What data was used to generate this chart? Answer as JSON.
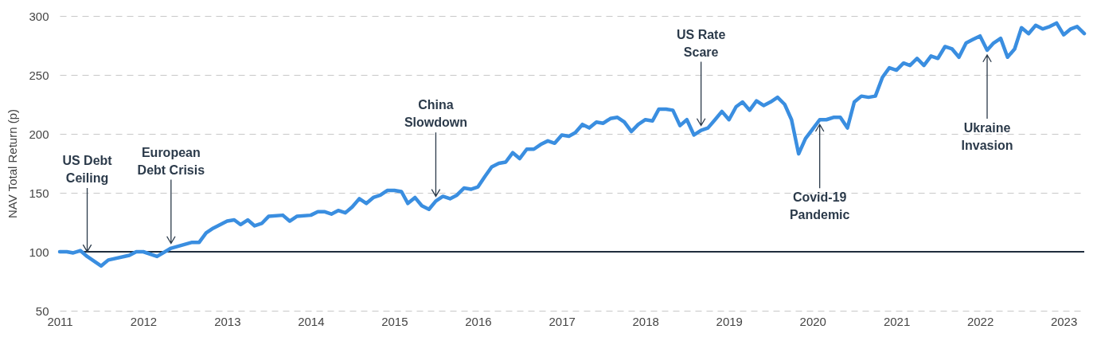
{
  "chart_data": {
    "type": "line",
    "ylabel": "NAV Total Return (p)",
    "x": [
      "2011-01",
      "2011-02",
      "2011-03",
      "2011-04",
      "2011-05",
      "2011-07",
      "2011-08",
      "2011-11",
      "2011-12",
      "2012-01",
      "2012-03",
      "2012-05",
      "2012-08",
      "2012-09",
      "2012-10",
      "2012-11",
      "2013-01",
      "2013-02",
      "2013-03",
      "2013-04",
      "2013-05",
      "2013-06",
      "2013-07",
      "2013-09",
      "2013-10",
      "2013-11",
      "2014-01",
      "2014-02",
      "2014-03",
      "2014-04",
      "2014-05",
      "2014-06",
      "2014-07",
      "2014-08",
      "2014-09",
      "2014-10",
      "2014-11",
      "2014-12",
      "2015-01",
      "2015-02",
      "2015-03",
      "2015-04",
      "2015-05",
      "2015-06",
      "2015-07",
      "2015-08",
      "2015-09",
      "2015-10",
      "2015-11",
      "2015-12",
      "2016-01",
      "2016-02",
      "2016-03",
      "2016-04",
      "2016-05",
      "2016-06",
      "2016-07",
      "2016-08",
      "2016-09",
      "2016-10",
      "2016-11",
      "2016-12",
      "2017-01",
      "2017-02",
      "2017-03",
      "2017-04",
      "2017-05",
      "2017-06",
      "2017-07",
      "2017-08",
      "2017-09",
      "2017-10",
      "2017-11",
      "2017-12",
      "2018-01",
      "2018-02",
      "2018-03",
      "2018-04",
      "2018-05",
      "2018-06",
      "2018-07",
      "2018-08",
      "2018-09",
      "2018-10",
      "2018-11",
      "2018-12",
      "2019-01",
      "2019-02",
      "2019-03",
      "2019-04",
      "2019-05",
      "2019-06",
      "2019-07",
      "2019-08",
      "2019-09",
      "2019-10",
      "2019-11",
      "2019-12",
      "2020-01",
      "2020-02",
      "2020-03",
      "2020-04",
      "2020-05",
      "2020-06",
      "2020-07",
      "2020-08",
      "2020-09",
      "2020-10",
      "2020-11",
      "2020-12",
      "2021-01",
      "2021-02",
      "2021-03",
      "2021-04",
      "2021-05",
      "2021-06",
      "2021-07",
      "2021-08",
      "2021-09",
      "2021-10",
      "2021-11",
      "2021-12",
      "2022-01",
      "2022-02",
      "2022-03",
      "2022-04",
      "2022-05",
      "2022-06",
      "2022-07",
      "2022-08",
      "2022-09",
      "2022-10",
      "2022-11",
      "2022-12",
      "2023-01",
      "2023-02",
      "2023-03",
      "2023-04"
    ],
    "series": [
      {
        "color": "#3a8ee0",
        "values": [
          100,
          100,
          99,
          101,
          96,
          88,
          93,
          97,
          100,
          100,
          96,
          103,
          108,
          108,
          116,
          120,
          126,
          127,
          123,
          127,
          122,
          124,
          130,
          131,
          126,
          130,
          131,
          134,
          134,
          132,
          135,
          133,
          138,
          145,
          141,
          146,
          148,
          152,
          152,
          151,
          141,
          146,
          139,
          136,
          143,
          147,
          145,
          148,
          154,
          153,
          155,
          164,
          172,
          175,
          176,
          184,
          179,
          187,
          187,
          191,
          194,
          192,
          199,
          198,
          201,
          208,
          205,
          210,
          209,
          213,
          214,
          210,
          202,
          208,
          212,
          211,
          221,
          221,
          220,
          207,
          212,
          199,
          203,
          205,
          212,
          219,
          212,
          223,
          227,
          220,
          228,
          224,
          227,
          231,
          225,
          212,
          183,
          196,
          204,
          212,
          212,
          214,
          214,
          205,
          227,
          232,
          231,
          232,
          248,
          256,
          254,
          260,
          258,
          264,
          258,
          266,
          264,
          274,
          272,
          265,
          277,
          280,
          283,
          271,
          277,
          281,
          265,
          272,
          290,
          285,
          292,
          289,
          291,
          294,
          284,
          289,
          291,
          285
        ]
      }
    ],
    "xlim": [
      "2011-01",
      "2023-04"
    ],
    "xticks": [
      "2011",
      "2012",
      "2013",
      "2014",
      "2015",
      "2016",
      "2017",
      "2018",
      "2019",
      "2020",
      "2021",
      "2022",
      "2023"
    ],
    "ylim": [
      50,
      300
    ],
    "yticks": [
      50,
      100,
      150,
      200,
      250,
      300
    ],
    "grid": "y",
    "ref_lines": [
      {
        "axis": "y",
        "value": 100,
        "color": "#1f2d3d"
      }
    ],
    "annotations": [
      {
        "text": "US Debt\nCeiling",
        "x": "2011-05",
        "y": 96
      },
      {
        "text": "European\nDebt Crisis",
        "x": "2012-05",
        "y": 103
      },
      {
        "text": "China\nSlowdown",
        "x": "2015-07",
        "y": 143
      },
      {
        "text": "US Rate\nScare",
        "x": "2018-09",
        "y": 203
      },
      {
        "text": "Covid-19\nPandemic",
        "x": "2020-02",
        "y": 212
      },
      {
        "text": "Ukraine\nInvasion",
        "x": "2022-02",
        "y": 271
      }
    ]
  }
}
